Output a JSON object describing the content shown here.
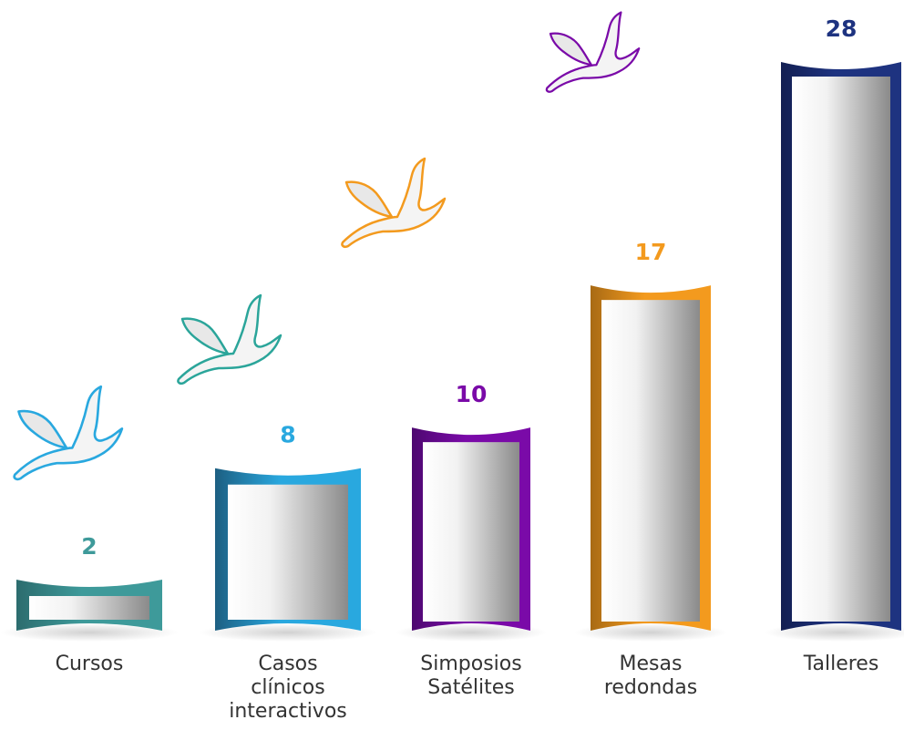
{
  "chart_data": {
    "type": "bar",
    "title": "",
    "xlabel": "",
    "ylabel": "",
    "ylim": [
      0,
      28
    ],
    "grid": false,
    "categories": [
      [
        "Cursos"
      ],
      [
        "Casos",
        "clínicos",
        "interactivos"
      ],
      [
        "Simposios",
        "Satélites"
      ],
      [
        "Mesas",
        "redondas"
      ],
      [
        "Talleres"
      ]
    ],
    "values": [
      2,
      8,
      10,
      17,
      28
    ],
    "value_labels": [
      "2",
      "8",
      "10",
      "17",
      "28"
    ],
    "colors": [
      "#3e9a9a",
      "#29a8df",
      "#7a0aa8",
      "#f39a1e",
      "#1e3380"
    ],
    "dark_colors": [
      "#2c6c6e",
      "#1d5f82",
      "#4d0870",
      "#a86a14",
      "#131f52"
    ]
  },
  "decorations": {
    "birds": [
      {
        "icon": "bird-icon",
        "color": "#29a8df"
      },
      {
        "icon": "bird-icon",
        "color": "#2ba59a"
      },
      {
        "icon": "bird-icon",
        "color": "#f39a1e"
      },
      {
        "icon": "bird-icon",
        "color": "#7a0aa8"
      }
    ]
  }
}
